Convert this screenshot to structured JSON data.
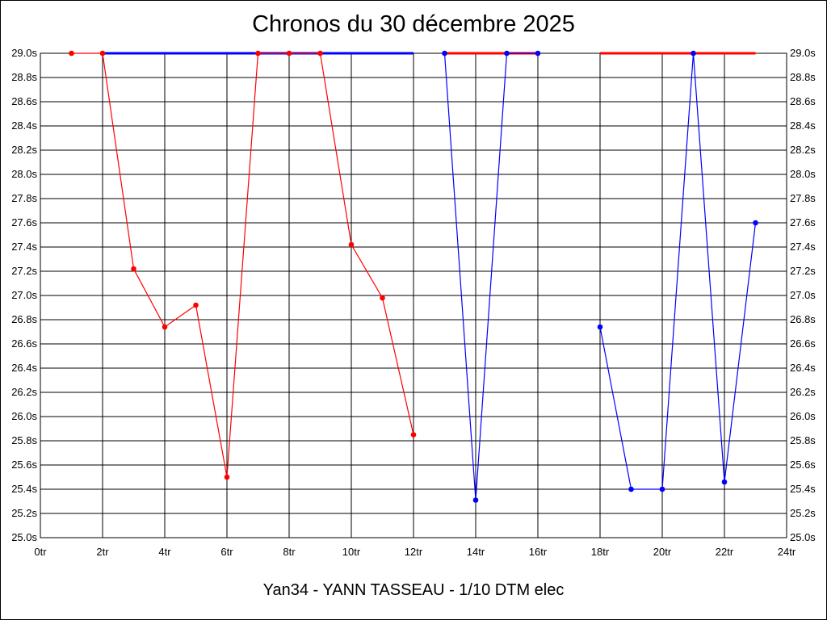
{
  "chart_data": {
    "type": "line",
    "title": "Chronos du 30 décembre 2025",
    "subtitle": "Yan34 - YANN TASSEAU - 1/10 DTM elec",
    "xlabel": "",
    "ylabel": "",
    "xlim": [
      0,
      24
    ],
    "ylim": [
      25.0,
      29.0
    ],
    "x_tick_labels": [
      "0tr",
      "2tr",
      "4tr",
      "6tr",
      "8tr",
      "10tr",
      "12tr",
      "14tr",
      "16tr",
      "18tr",
      "20tr",
      "22tr",
      "24tr"
    ],
    "y_tick_labels": [
      "25.0s",
      "25.2s",
      "25.4s",
      "25.6s",
      "25.8s",
      "26.0s",
      "26.2s",
      "26.4s",
      "26.6s",
      "26.8s",
      "27.0s",
      "27.2s",
      "27.4s",
      "27.6s",
      "27.8s",
      "28.0s",
      "28.2s",
      "28.4s",
      "28.6s",
      "28.8s",
      "29.0s"
    ],
    "grid": true,
    "colors": {
      "red": "#ff0000",
      "blue": "#0000ff"
    },
    "series": [
      {
        "color": "red",
        "points": [
          [
            1,
            29.0
          ],
          [
            2,
            29.0
          ],
          [
            3,
            27.22
          ],
          [
            4,
            26.74
          ],
          [
            5,
            26.92
          ],
          [
            6,
            25.5
          ],
          [
            7,
            29.0
          ],
          [
            8,
            29.0
          ],
          [
            9,
            29.0
          ],
          [
            10,
            27.42
          ],
          [
            11,
            26.98
          ],
          [
            12,
            25.85
          ]
        ]
      },
      {
        "color": "blue",
        "points": [
          [
            13,
            29.0
          ],
          [
            14,
            25.31
          ],
          [
            15,
            29.0
          ],
          [
            16,
            29.0
          ]
        ]
      },
      {
        "color": "blue",
        "points": [
          [
            18,
            26.74
          ],
          [
            19,
            25.4
          ],
          [
            20,
            25.4
          ],
          [
            21,
            29.0
          ],
          [
            22,
            25.46
          ],
          [
            23,
            27.6
          ]
        ]
      }
    ],
    "top_segments": [
      {
        "color": "blue",
        "from": 2,
        "to": 12
      },
      {
        "color": "red",
        "from": 13,
        "to": 16
      },
      {
        "color": "red",
        "from": 18,
        "to": 23
      }
    ]
  }
}
